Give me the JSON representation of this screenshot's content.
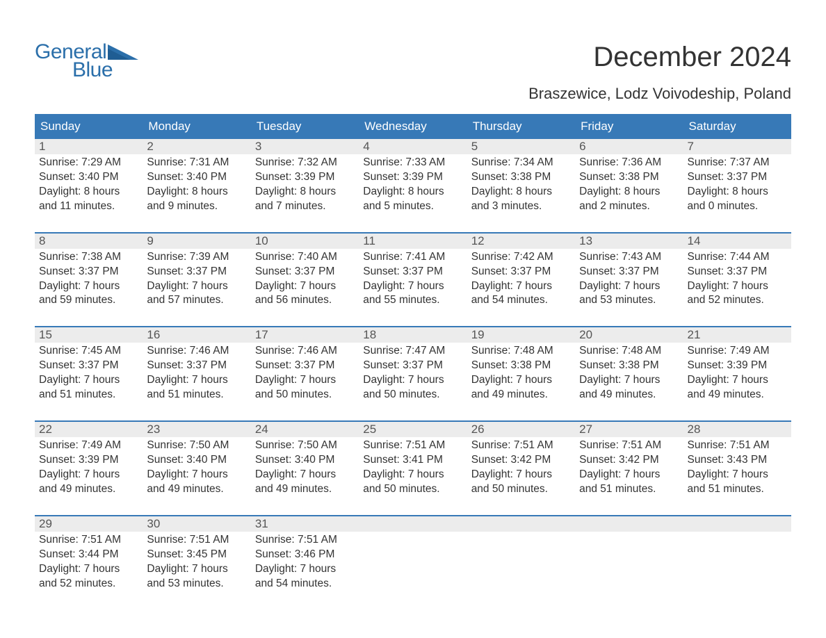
{
  "logo": {
    "text1": "General",
    "text2": "Blue",
    "tri_color": "#2b6faa"
  },
  "title": "December 2024",
  "location": "Braszewice, Lodz Voivodeship, Poland",
  "colors": {
    "header_bg": "#3779b7",
    "header_text": "#ffffff",
    "daynum_bg": "#ececec",
    "daynum_text": "#555555",
    "body_text": "#333333",
    "rule": "#3779b7",
    "page_bg": "#ffffff"
  },
  "typography": {
    "title_fontsize": 40,
    "location_fontsize": 22,
    "dayhead_fontsize": 17,
    "daynum_fontsize": 17,
    "detail_fontsize": 15.5,
    "logo_fontsize": 30
  },
  "day_headers": [
    "Sunday",
    "Monday",
    "Tuesday",
    "Wednesday",
    "Thursday",
    "Friday",
    "Saturday"
  ],
  "weeks": [
    [
      {
        "n": "1",
        "sr": "Sunrise: 7:29 AM",
        "ss": "Sunset: 3:40 PM",
        "d1": "Daylight: 8 hours",
        "d2": "and 11 minutes."
      },
      {
        "n": "2",
        "sr": "Sunrise: 7:31 AM",
        "ss": "Sunset: 3:40 PM",
        "d1": "Daylight: 8 hours",
        "d2": "and 9 minutes."
      },
      {
        "n": "3",
        "sr": "Sunrise: 7:32 AM",
        "ss": "Sunset: 3:39 PM",
        "d1": "Daylight: 8 hours",
        "d2": "and 7 minutes."
      },
      {
        "n": "4",
        "sr": "Sunrise: 7:33 AM",
        "ss": "Sunset: 3:39 PM",
        "d1": "Daylight: 8 hours",
        "d2": "and 5 minutes."
      },
      {
        "n": "5",
        "sr": "Sunrise: 7:34 AM",
        "ss": "Sunset: 3:38 PM",
        "d1": "Daylight: 8 hours",
        "d2": "and 3 minutes."
      },
      {
        "n": "6",
        "sr": "Sunrise: 7:36 AM",
        "ss": "Sunset: 3:38 PM",
        "d1": "Daylight: 8 hours",
        "d2": "and 2 minutes."
      },
      {
        "n": "7",
        "sr": "Sunrise: 7:37 AM",
        "ss": "Sunset: 3:37 PM",
        "d1": "Daylight: 8 hours",
        "d2": "and 0 minutes."
      }
    ],
    [
      {
        "n": "8",
        "sr": "Sunrise: 7:38 AM",
        "ss": "Sunset: 3:37 PM",
        "d1": "Daylight: 7 hours",
        "d2": "and 59 minutes."
      },
      {
        "n": "9",
        "sr": "Sunrise: 7:39 AM",
        "ss": "Sunset: 3:37 PM",
        "d1": "Daylight: 7 hours",
        "d2": "and 57 minutes."
      },
      {
        "n": "10",
        "sr": "Sunrise: 7:40 AM",
        "ss": "Sunset: 3:37 PM",
        "d1": "Daylight: 7 hours",
        "d2": "and 56 minutes."
      },
      {
        "n": "11",
        "sr": "Sunrise: 7:41 AM",
        "ss": "Sunset: 3:37 PM",
        "d1": "Daylight: 7 hours",
        "d2": "and 55 minutes."
      },
      {
        "n": "12",
        "sr": "Sunrise: 7:42 AM",
        "ss": "Sunset: 3:37 PM",
        "d1": "Daylight: 7 hours",
        "d2": "and 54 minutes."
      },
      {
        "n": "13",
        "sr": "Sunrise: 7:43 AM",
        "ss": "Sunset: 3:37 PM",
        "d1": "Daylight: 7 hours",
        "d2": "and 53 minutes."
      },
      {
        "n": "14",
        "sr": "Sunrise: 7:44 AM",
        "ss": "Sunset: 3:37 PM",
        "d1": "Daylight: 7 hours",
        "d2": "and 52 minutes."
      }
    ],
    [
      {
        "n": "15",
        "sr": "Sunrise: 7:45 AM",
        "ss": "Sunset: 3:37 PM",
        "d1": "Daylight: 7 hours",
        "d2": "and 51 minutes."
      },
      {
        "n": "16",
        "sr": "Sunrise: 7:46 AM",
        "ss": "Sunset: 3:37 PM",
        "d1": "Daylight: 7 hours",
        "d2": "and 51 minutes."
      },
      {
        "n": "17",
        "sr": "Sunrise: 7:46 AM",
        "ss": "Sunset: 3:37 PM",
        "d1": "Daylight: 7 hours",
        "d2": "and 50 minutes."
      },
      {
        "n": "18",
        "sr": "Sunrise: 7:47 AM",
        "ss": "Sunset: 3:37 PM",
        "d1": "Daylight: 7 hours",
        "d2": "and 50 minutes."
      },
      {
        "n": "19",
        "sr": "Sunrise: 7:48 AM",
        "ss": "Sunset: 3:38 PM",
        "d1": "Daylight: 7 hours",
        "d2": "and 49 minutes."
      },
      {
        "n": "20",
        "sr": "Sunrise: 7:48 AM",
        "ss": "Sunset: 3:38 PM",
        "d1": "Daylight: 7 hours",
        "d2": "and 49 minutes."
      },
      {
        "n": "21",
        "sr": "Sunrise: 7:49 AM",
        "ss": "Sunset: 3:39 PM",
        "d1": "Daylight: 7 hours",
        "d2": "and 49 minutes."
      }
    ],
    [
      {
        "n": "22",
        "sr": "Sunrise: 7:49 AM",
        "ss": "Sunset: 3:39 PM",
        "d1": "Daylight: 7 hours",
        "d2": "and 49 minutes."
      },
      {
        "n": "23",
        "sr": "Sunrise: 7:50 AM",
        "ss": "Sunset: 3:40 PM",
        "d1": "Daylight: 7 hours",
        "d2": "and 49 minutes."
      },
      {
        "n": "24",
        "sr": "Sunrise: 7:50 AM",
        "ss": "Sunset: 3:40 PM",
        "d1": "Daylight: 7 hours",
        "d2": "and 49 minutes."
      },
      {
        "n": "25",
        "sr": "Sunrise: 7:51 AM",
        "ss": "Sunset: 3:41 PM",
        "d1": "Daylight: 7 hours",
        "d2": "and 50 minutes."
      },
      {
        "n": "26",
        "sr": "Sunrise: 7:51 AM",
        "ss": "Sunset: 3:42 PM",
        "d1": "Daylight: 7 hours",
        "d2": "and 50 minutes."
      },
      {
        "n": "27",
        "sr": "Sunrise: 7:51 AM",
        "ss": "Sunset: 3:42 PM",
        "d1": "Daylight: 7 hours",
        "d2": "and 51 minutes."
      },
      {
        "n": "28",
        "sr": "Sunrise: 7:51 AM",
        "ss": "Sunset: 3:43 PM",
        "d1": "Daylight: 7 hours",
        "d2": "and 51 minutes."
      }
    ],
    [
      {
        "n": "29",
        "sr": "Sunrise: 7:51 AM",
        "ss": "Sunset: 3:44 PM",
        "d1": "Daylight: 7 hours",
        "d2": "and 52 minutes."
      },
      {
        "n": "30",
        "sr": "Sunrise: 7:51 AM",
        "ss": "Sunset: 3:45 PM",
        "d1": "Daylight: 7 hours",
        "d2": "and 53 minutes."
      },
      {
        "n": "31",
        "sr": "Sunrise: 7:51 AM",
        "ss": "Sunset: 3:46 PM",
        "d1": "Daylight: 7 hours",
        "d2": "and 54 minutes."
      },
      {
        "n": "",
        "sr": "",
        "ss": "",
        "d1": "",
        "d2": ""
      },
      {
        "n": "",
        "sr": "",
        "ss": "",
        "d1": "",
        "d2": ""
      },
      {
        "n": "",
        "sr": "",
        "ss": "",
        "d1": "",
        "d2": ""
      },
      {
        "n": "",
        "sr": "",
        "ss": "",
        "d1": "",
        "d2": ""
      }
    ]
  ]
}
